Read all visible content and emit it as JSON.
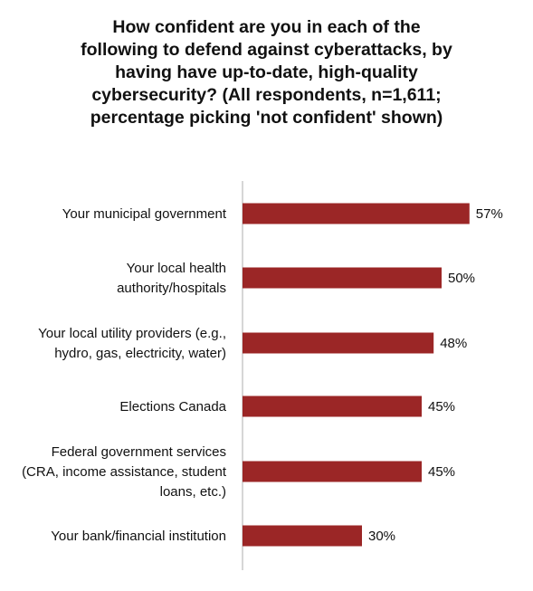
{
  "chart_data": {
    "type": "bar",
    "orientation": "horizontal",
    "title_lines": [
      "How confident are you in each of the",
      "following to defend against cyberattacks, by",
      "having have up-to-date, high-quality",
      "cybersecurity? (All respondents, n=1,611;",
      "percentage picking 'not confident' shown)"
    ],
    "categories": [
      [
        "Your municipal government"
      ],
      [
        "Your local health",
        "authority/hospitals"
      ],
      [
        "Your local utility providers (e.g.,",
        "hydro, gas, electricity, water)"
      ],
      [
        "Elections Canada"
      ],
      [
        "Federal government services",
        "(CRA, income assistance, student",
        "loans, etc.)"
      ],
      [
        "Your bank/financial institution"
      ]
    ],
    "values": [
      57,
      50,
      48,
      45,
      45,
      30
    ],
    "value_labels": [
      "57%",
      "50%",
      "48%",
      "45%",
      "45%",
      "30%"
    ],
    "xlim": [
      0,
      100
    ],
    "bar_color": "#9b2626",
    "axis_color": "#c8c8c8",
    "grid": false,
    "legend": "none"
  }
}
